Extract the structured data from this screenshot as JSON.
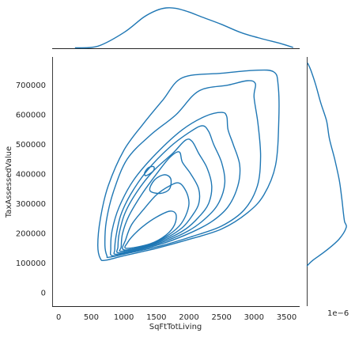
{
  "chart_data": {
    "type": "jointplot-kde",
    "color": "#1f77b4",
    "xlabel": "SqFtTotLiving",
    "ylabel": "TaxAssessedValue",
    "xlim": [
      -100,
      3700
    ],
    "ylim": [
      -45000,
      795000
    ],
    "xticks": [
      0,
      500,
      1000,
      1500,
      2000,
      2500,
      3000,
      3500
    ],
    "yticks": [
      0,
      100000,
      200000,
      300000,
      400000,
      500000,
      600000,
      700000
    ],
    "offset_text": "1e−6",
    "top_marginal_x": [
      250,
      600,
      1000,
      1300,
      1500,
      1650,
      1800,
      2000,
      2200,
      2500,
      2800,
      3100,
      3400,
      3600
    ],
    "top_marginal_density": [
      0.01,
      0.05,
      0.38,
      0.75,
      0.92,
      0.98,
      0.97,
      0.88,
      0.76,
      0.58,
      0.38,
      0.24,
      0.12,
      0.02
    ],
    "right_marginal_y": [
      90000,
      110000,
      140000,
      180000,
      220000,
      240000,
      270000,
      320000,
      380000,
      450000,
      520000,
      580000,
      640000,
      700000,
      750000,
      775000
    ],
    "right_marginal_density": [
      0.0,
      0.15,
      0.45,
      0.78,
      0.96,
      0.92,
      0.89,
      0.85,
      0.79,
      0.68,
      0.55,
      0.48,
      0.34,
      0.22,
      0.1,
      0.02
    ],
    "contours": [
      [
        [
          720,
          110000
        ],
        [
          1000,
          125000
        ],
        [
          1500,
          150000
        ],
        [
          2000,
          180000
        ],
        [
          2500,
          215000
        ],
        [
          2900,
          270000
        ],
        [
          3150,
          330000
        ],
        [
          3330,
          430000
        ],
        [
          3380,
          580000
        ],
        [
          3370,
          700000
        ],
        [
          3300,
          745000
        ],
        [
          3000,
          750000
        ],
        [
          2500,
          740000
        ],
        [
          1900,
          725000
        ],
        [
          1600,
          650000
        ],
        [
          1300,
          570000
        ],
        [
          1000,
          480000
        ],
        [
          760,
          360000
        ],
        [
          640,
          250000
        ],
        [
          600,
          160000
        ],
        [
          640,
          115000
        ]
      ],
      [
        [
          780,
          120000
        ],
        [
          1100,
          135000
        ],
        [
          1600,
          160000
        ],
        [
          2050,
          190000
        ],
        [
          2500,
          225000
        ],
        [
          2850,
          280000
        ],
        [
          3050,
          360000
        ],
        [
          3100,
          460000
        ],
        [
          3060,
          570000
        ],
        [
          3000,
          660000
        ],
        [
          3020,
          705000
        ],
        [
          2900,
          715000
        ],
        [
          2600,
          700000
        ],
        [
          2150,
          680000
        ],
        [
          1800,
          600000
        ],
        [
          1400,
          530000
        ],
        [
          1050,
          450000
        ],
        [
          840,
          340000
        ],
        [
          730,
          240000
        ],
        [
          710,
          160000
        ],
        [
          740,
          125000
        ]
      ],
      [
        [
          830,
          125000
        ],
        [
          1150,
          140000
        ],
        [
          1650,
          170000
        ],
        [
          2050,
          205000
        ],
        [
          2350,
          240000
        ],
        [
          2600,
          290000
        ],
        [
          2750,
          360000
        ],
        [
          2780,
          430000
        ],
        [
          2680,
          500000
        ],
        [
          2600,
          550000
        ],
        [
          2580,
          595000
        ],
        [
          2500,
          608000
        ],
        [
          2250,
          595000
        ],
        [
          1900,
          550000
        ],
        [
          1500,
          470000
        ],
        [
          1150,
          380000
        ],
        [
          930,
          290000
        ],
        [
          820,
          210000
        ],
        [
          800,
          150000
        ]
      ],
      [
        [
          880,
          130000
        ],
        [
          1200,
          145000
        ],
        [
          1650,
          175000
        ],
        [
          2000,
          210000
        ],
        [
          2250,
          250000
        ],
        [
          2450,
          300000
        ],
        [
          2550,
          370000
        ],
        [
          2500,
          440000
        ],
        [
          2380,
          500000
        ],
        [
          2300,
          545000
        ],
        [
          2200,
          563000
        ],
        [
          2000,
          540000
        ],
        [
          1700,
          490000
        ],
        [
          1350,
          410000
        ],
        [
          1100,
          330000
        ],
        [
          950,
          260000
        ],
        [
          880,
          190000
        ],
        [
          860,
          145000
        ]
      ],
      [
        [
          920,
          135000
        ],
        [
          1250,
          150000
        ],
        [
          1650,
          180000
        ],
        [
          1950,
          215000
        ],
        [
          2150,
          255000
        ],
        [
          2300,
          300000
        ],
        [
          2350,
          360000
        ],
        [
          2280,
          420000
        ],
        [
          2150,
          470000
        ],
        [
          2050,
          510000
        ],
        [
          1950,
          515000
        ],
        [
          1750,
          470000
        ],
        [
          1450,
          410000
        ],
        [
          1200,
          340000
        ],
        [
          1020,
          270000
        ],
        [
          930,
          200000
        ],
        [
          910,
          155000
        ]
      ],
      [
        [
          960,
          140000
        ],
        [
          1300,
          155000
        ],
        [
          1650,
          185000
        ],
        [
          1900,
          220000
        ],
        [
          2050,
          260000
        ],
        [
          2150,
          300000
        ],
        [
          2150,
          350000
        ],
        [
          2030,
          400000
        ],
        [
          1900,
          440000
        ],
        [
          1850,
          475000
        ],
        [
          1700,
          455000
        ],
        [
          1500,
          400000
        ],
        [
          1270,
          330000
        ],
        [
          1080,
          260000
        ],
        [
          980,
          200000
        ],
        [
          960,
          155000
        ]
      ],
      [
        [
          1000,
          145000
        ],
        [
          1350,
          160000
        ],
        [
          1650,
          190000
        ],
        [
          1850,
          225000
        ],
        [
          1950,
          260000
        ],
        [
          2000,
          300000
        ],
        [
          1960,
          340000
        ],
        [
          1850,
          370000
        ],
        [
          1700,
          360000
        ],
        [
          1500,
          330000
        ],
        [
          1300,
          280000
        ],
        [
          1120,
          230000
        ],
        [
          1030,
          180000
        ]
      ],
      [
        [
          1040,
          150000
        ],
        [
          1400,
          165000
        ],
        [
          1650,
          195000
        ],
        [
          1780,
          230000
        ],
        [
          1800,
          265000
        ],
        [
          1700,
          275000
        ],
        [
          1500,
          255000
        ],
        [
          1300,
          225000
        ],
        [
          1150,
          195000
        ],
        [
          1060,
          170000
        ]
      ],
      [
        [
          1400,
          345000
        ],
        [
          1560,
          335000
        ],
        [
          1700,
          350000
        ],
        [
          1720,
          385000
        ],
        [
          1620,
          398000
        ],
        [
          1470,
          380000
        ]
      ],
      [
        [
          1340,
          395000
        ],
        [
          1450,
          410000
        ],
        [
          1460,
          425000
        ],
        [
          1380,
          422000
        ],
        [
          1320,
          405000
        ]
      ]
    ]
  }
}
